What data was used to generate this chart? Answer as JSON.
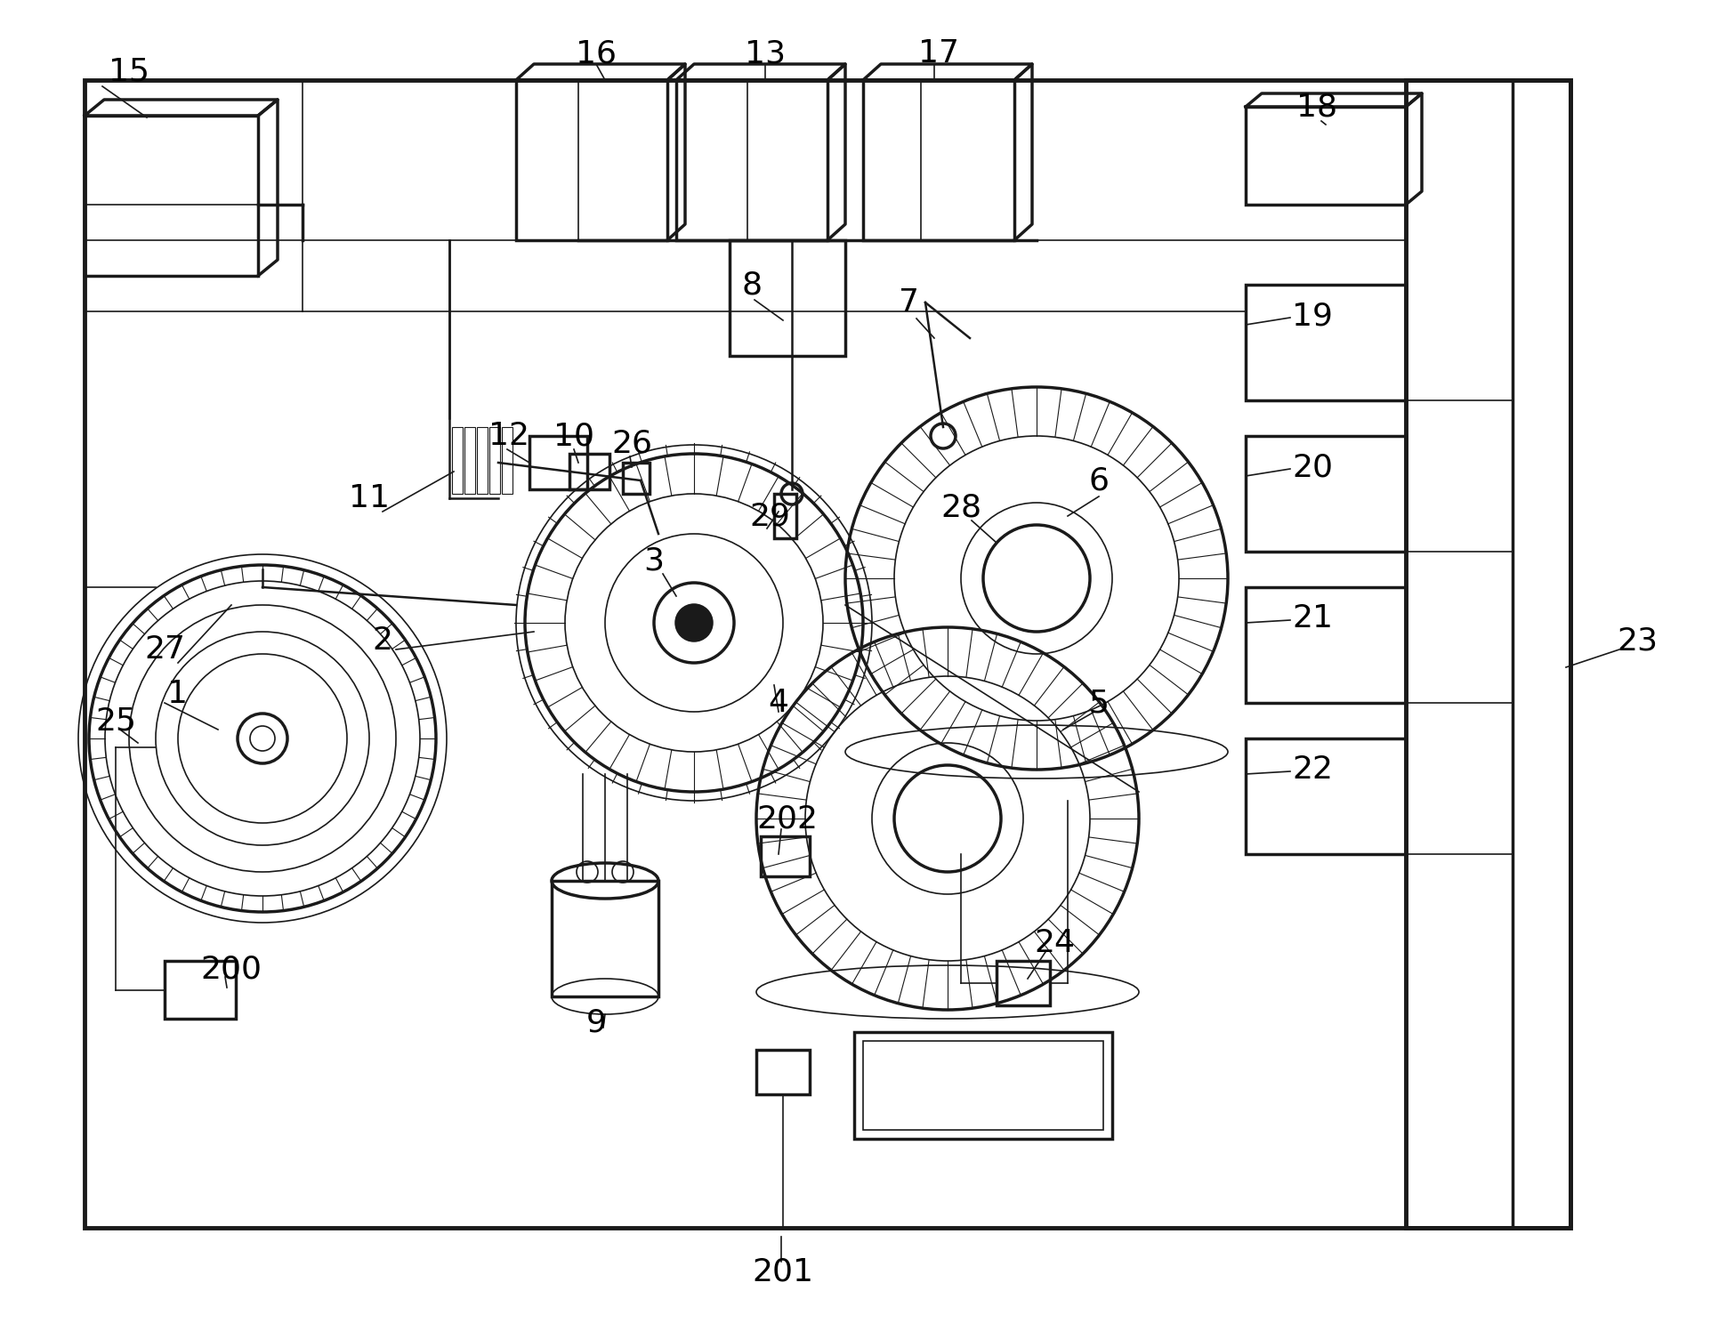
{
  "bg_color": "#ffffff",
  "line_color": "#1a1a1a",
  "label_color": "#000000",
  "fig_width": 19.24,
  "fig_height": 14.96
}
